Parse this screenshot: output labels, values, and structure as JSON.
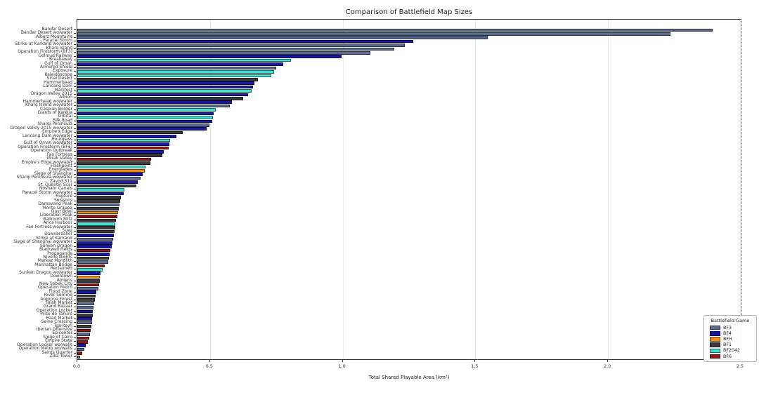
{
  "chart_data": {
    "type": "bar",
    "orientation": "horizontal",
    "title": "Comparison of Battlefield Map Sizes",
    "xlabel": "Total Shared Playable Area (km²)",
    "ylabel": "",
    "xlim": [
      0.0,
      2.5
    ],
    "xticks": [
      "0.0",
      "0.5",
      "1.0",
      "1.5",
      "2.0",
      "2.5"
    ],
    "grid": "vertical-dotted",
    "legend_position": "lower-right",
    "legend_title": "Battlefield Game",
    "legend_entries": [
      {
        "label": "BF3",
        "color": "#5a6b8f"
      },
      {
        "label": "BF4",
        "color": "#1a17a0"
      },
      {
        "label": "BFH",
        "color": "#f28c1c"
      },
      {
        "label": "BF1",
        "color": "#3a3a3c"
      },
      {
        "label": "BF2042",
        "color": "#40ddd0"
      },
      {
        "label": "BF6",
        "color": "#8c1a1a"
      }
    ],
    "categories": [
      "Bandar Desert",
      "Bandar Desert wo/water",
      "Alborz Mountains",
      "Paracel Storm",
      "Strike at Karkand wo/water",
      "Kharg Island",
      "Operation Firestorm (BF3)",
      "Golmud Railway",
      "Breakaway",
      "Gulf of Oman",
      "Armored Shield",
      "Exposure",
      "Kaleidoscope",
      "Sinai Desert",
      "Hammerhead",
      "Lancang Dam",
      "Manifest",
      "Dragon Valley 2015",
      "Albion",
      "Hammerhead wo/water",
      "Kharg Island wo/water",
      "Caspian Border",
      "Giants of Karelia",
      "Orbital",
      "Silk Road",
      "Sharqi Peninsula",
      "Dragon Valley 2015 wo/water",
      "Empire's Edge",
      "Lancang Dam wo/water",
      "Hourglass",
      "Gulf of Oman wo/water",
      "Operation Firestorm (BF6)",
      "Operation Outbreak",
      "Fao Fortress",
      "Mirak Valley",
      "Empire's Edge wo/water",
      "Flashpoint",
      "Everglades",
      "Siege of Shanghai",
      "Sharqi Peninsula wo/water",
      "Zavod 311",
      "St. Quentin Scar",
      "Noshahr Canals",
      "Paracel Storm wo/water",
      "Rupture",
      "Soissons",
      "Damavand Peak",
      "Monte Grappa",
      "Dust Bowl",
      "Liberation Peak",
      "Ballroom Blitz",
      "Arica Harbour",
      "Fao Fortress wo/water",
      "Suez",
      "Dawnbreaker",
      "Strike at Karkand",
      "Siege of Shanghai wo/water",
      "Sunken Dragon",
      "Blackwell Fields",
      "Propaganda",
      "Nivelle Nights",
      "Markaz Monolith",
      "Manhattan Bridge",
      "Reclaimed",
      "Sunken Dragon wo/water",
      "Downtown",
      "Amiens",
      "New Sobek City",
      "Operation Métro",
      "Flood Zone",
      "River Somme",
      "Argonne Forest",
      "Talah Market",
      "Grand Bazaar",
      "Operation Locker",
      "Prise de Tahure",
      "Pearl Market",
      "Seine Crossing",
      "Tsaritsyn",
      "Iberian Offensive",
      "Epicenter",
      "Siege of Cairo",
      "Empire State",
      "Operation Locker wo/walls",
      "Operation Métro wo/walls",
      "Saints Quarter",
      "Ziba Tower"
    ],
    "values": [
      2.39,
      2.23,
      1.54,
      1.26,
      1.23,
      1.19,
      1.1,
      0.99,
      0.8,
      0.77,
      0.745,
      0.735,
      0.725,
      0.675,
      0.662,
      0.657,
      0.652,
      0.637,
      0.62,
      0.578,
      0.57,
      0.517,
      0.508,
      0.506,
      0.504,
      0.492,
      0.482,
      0.392,
      0.367,
      0.345,
      0.341,
      0.338,
      0.321,
      0.316,
      0.274,
      0.271,
      0.252,
      0.248,
      0.24,
      0.233,
      0.222,
      0.217,
      0.172,
      0.169,
      0.158,
      0.156,
      0.154,
      0.151,
      0.148,
      0.145,
      0.141,
      0.139,
      0.137,
      0.135,
      0.132,
      0.129,
      0.127,
      0.125,
      0.12,
      0.117,
      0.113,
      0.11,
      0.097,
      0.091,
      0.082,
      0.08,
      0.079,
      0.078,
      0.073,
      0.066,
      0.063,
      0.06,
      0.058,
      0.056,
      0.054,
      0.053,
      0.051,
      0.049,
      0.047,
      0.045,
      0.043,
      0.04,
      0.034,
      0.027,
      0.022,
      0.013,
      0.004
    ],
    "bar_games": [
      "BF3",
      "BF3",
      "BF3",
      "BF4",
      "BF3",
      "BF3",
      "BF3",
      "BF4",
      "BF2042",
      "BF4",
      "BF3",
      "BF2042",
      "BF2042",
      "BF1",
      "BF4",
      "BF4",
      "BF2042",
      "BF4",
      "BF1",
      "BF4",
      "BF3",
      "BF2042",
      "BF4",
      "BF2042",
      "BF4",
      "BF3",
      "BF4",
      "BF1",
      "BF4",
      "BF2042",
      "BF4",
      "BF6",
      "BF4",
      "BF1",
      "BF6",
      "BF1",
      "BF2042",
      "BFH",
      "BF4",
      "BF3",
      "BF4",
      "BF1",
      "BF2042",
      "BF4",
      "BF1",
      "BF1",
      "BF3",
      "BF1",
      "BFH",
      "BF6",
      "BF1",
      "BF2042",
      "BF1",
      "BF1",
      "BF4",
      "BF3",
      "BF4",
      "BF4",
      "BF6",
      "BF4",
      "BF1",
      "BF3",
      "BF6",
      "BF2042",
      "BF4",
      "BFH",
      "BF1",
      "BF6",
      "BF3",
      "BF4",
      "BF1",
      "BF1",
      "BF3",
      "BF3",
      "BF4",
      "BF1",
      "BF4",
      "BF3",
      "BF1",
      "BF6",
      "BF3",
      "BF6",
      "BF6",
      "BF4",
      "BF3",
      "BF6",
      "BF3"
    ]
  }
}
